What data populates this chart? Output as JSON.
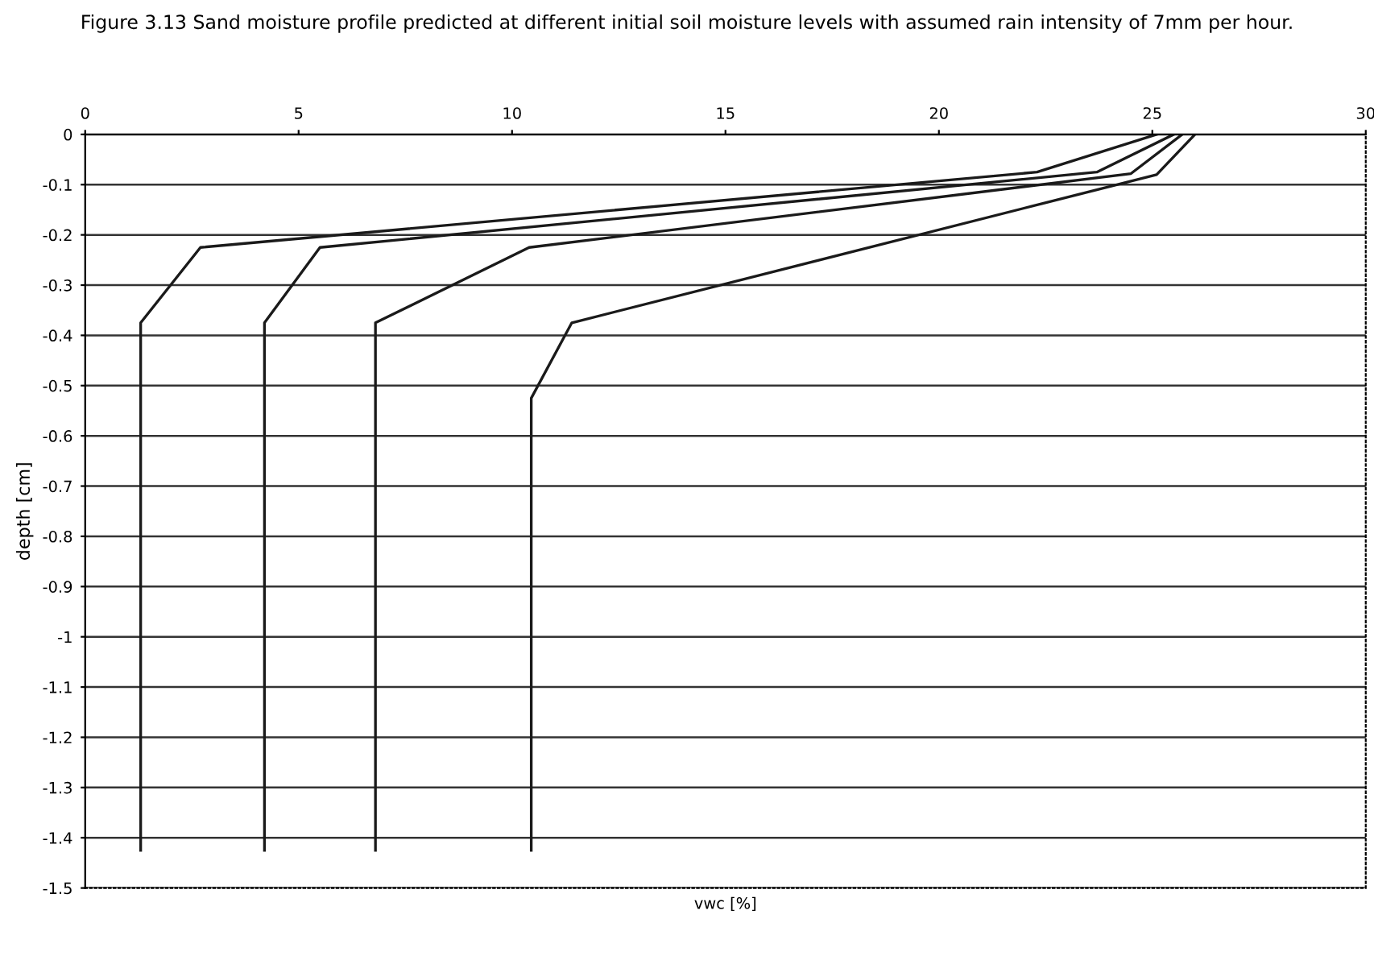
{
  "chart_data": {
    "type": "line",
    "title": "Figure 3.13 Sand moisture profile predicted at different initial soil moisture levels with assumed rain intensity of 7mm per hour.",
    "xlabel": "vwc [%]",
    "ylabel": "depth [cm]",
    "series": [
      {
        "color": "#1a1a1a",
        "x": [
          25.1,
          22.3,
          2.7,
          1.3,
          1.3
        ],
        "values": [
          0,
          -0.075,
          -0.225,
          -0.375,
          -1.425
        ]
      },
      {
        "color": "#1a1a1a",
        "x": [
          25.5,
          23.7,
          5.5,
          4.2,
          4.2
        ],
        "values": [
          0,
          -0.075,
          -0.225,
          -0.375,
          -1.425
        ]
      },
      {
        "color": "#1a1a1a",
        "x": [
          25.7,
          24.5,
          10.4,
          6.8,
          6.8
        ],
        "values": [
          0,
          -0.078,
          -0.225,
          -0.375,
          -1.425
        ]
      },
      {
        "color": "#1a1a1a",
        "x": [
          26.0,
          25.1,
          11.4,
          10.45,
          10.45
        ],
        "values": [
          0,
          -0.08,
          -0.375,
          -0.525,
          -1.425
        ]
      }
    ],
    "xlim": [
      0,
      30
    ],
    "xticks": [
      0,
      5,
      10,
      15,
      20,
      25,
      30
    ],
    "ylim": [
      -1.5,
      0
    ],
    "yticks": [
      0,
      -0.1,
      -0.2,
      -0.3,
      -0.4,
      -0.5,
      -0.6,
      -0.7,
      -0.8,
      -0.9,
      -1,
      -1.1,
      -1.2,
      -1.3,
      -1.4,
      -1.5
    ],
    "grid": "y",
    "marker": "none",
    "line_style": "solid"
  }
}
